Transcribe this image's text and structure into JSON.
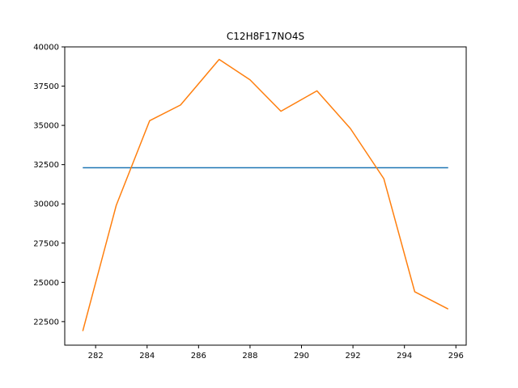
{
  "chart_data": {
    "type": "line",
    "title": "C12H8F17NO4S",
    "xlabel": "",
    "ylabel": "",
    "xlim": [
      280.8,
      296.4
    ],
    "ylim": [
      21000,
      40000
    ],
    "grid": false,
    "legend": "none",
    "x_ticks": [
      282,
      284,
      286,
      288,
      290,
      292,
      294,
      296
    ],
    "y_ticks": [
      22500,
      25000,
      27500,
      30000,
      32500,
      35000,
      37500,
      40000
    ],
    "x_tick_labels": [
      "282",
      "284",
      "286",
      "288",
      "290",
      "292",
      "294",
      "296"
    ],
    "y_tick_labels": [
      "22500",
      "25000",
      "27500",
      "30000",
      "32500",
      "35000",
      "37500",
      "40000"
    ],
    "series": [
      {
        "color": "#1f77b4",
        "x": [
          281.5,
          295.7
        ],
        "y": [
          32300,
          32300
        ]
      },
      {
        "color": "#ff7f0e",
        "x": [
          281.5,
          282.8,
          284.1,
          285.3,
          286.8,
          288.0,
          289.2,
          290.6,
          291.9,
          293.2,
          294.4,
          295.7
        ],
        "y": [
          21900,
          29900,
          35300,
          36300,
          39200,
          37900,
          35900,
          37200,
          34800,
          31600,
          24400,
          23300
        ]
      }
    ]
  }
}
